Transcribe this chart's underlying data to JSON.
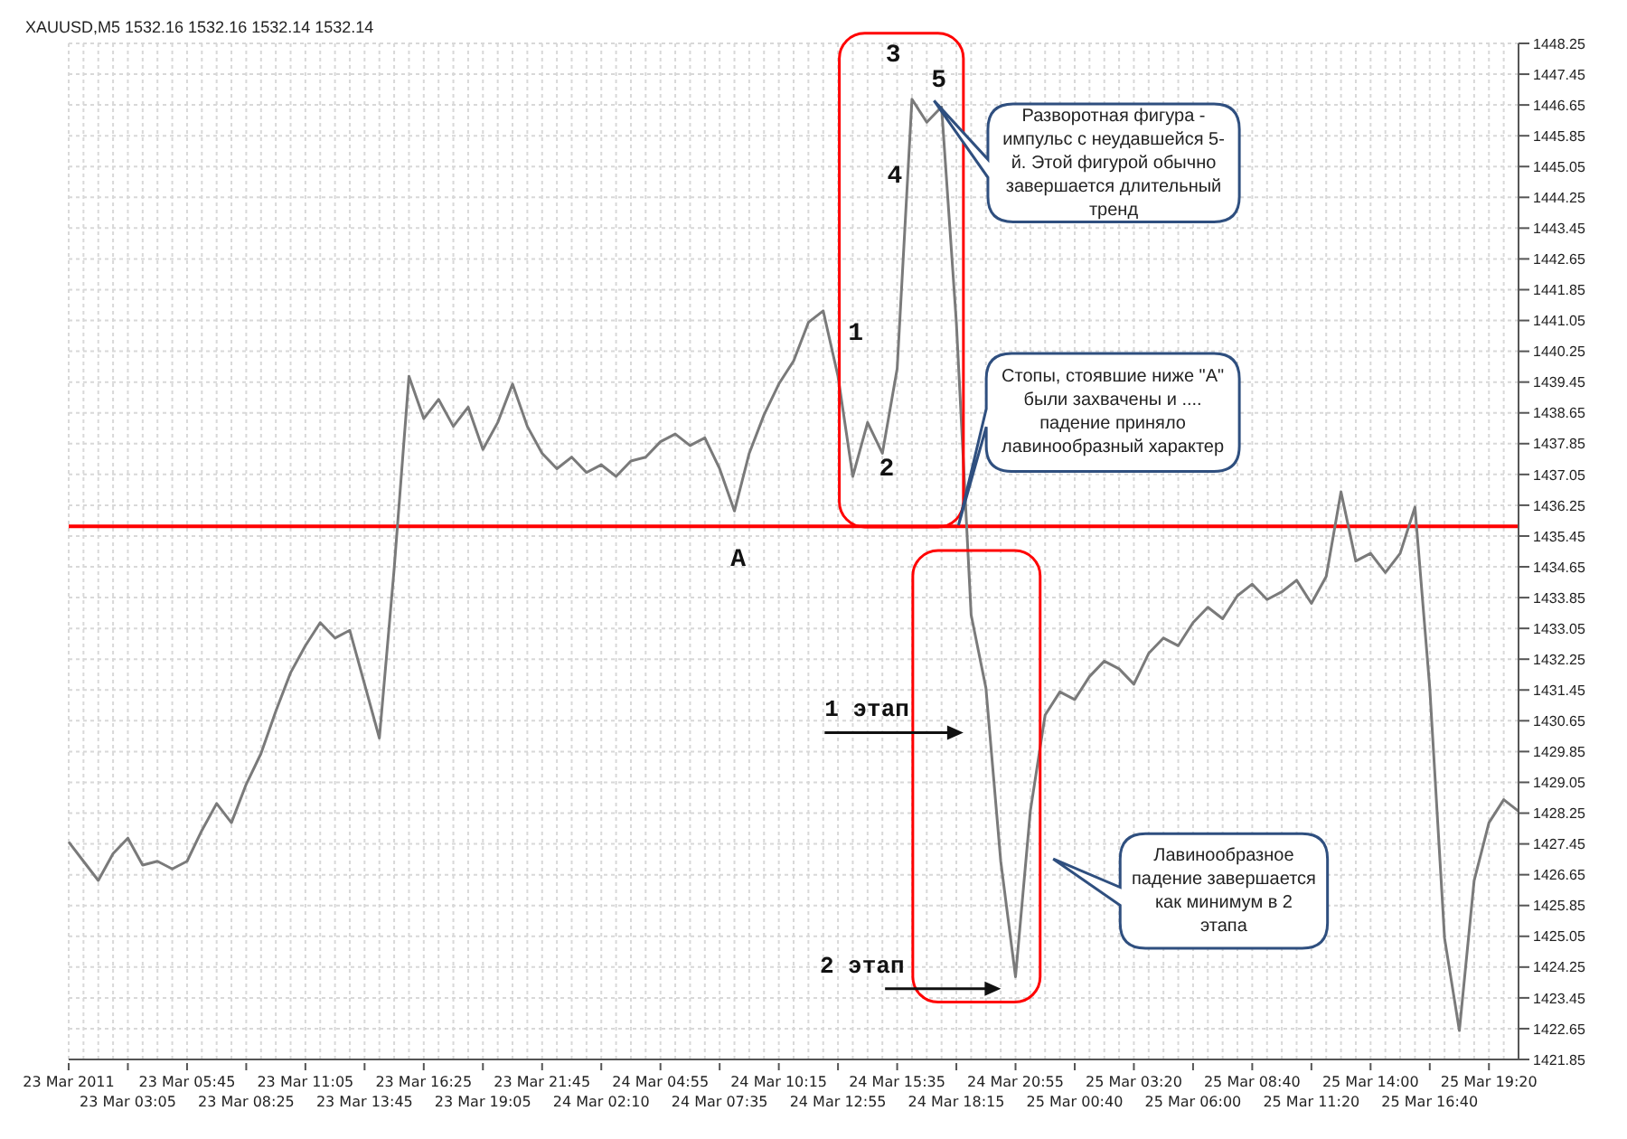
{
  "chart_data": {
    "type": "line",
    "title": "XAUUSD,M5  1532.16 1532.16 1532.14 1532.14",
    "categories": [
      "23 Mar 2011",
      null,
      null,
      null,
      "23 Mar 03:05",
      null,
      null,
      null,
      "23 Mar 05:45",
      null,
      null,
      null,
      "23 Mar 08:25",
      null,
      null,
      null,
      "23 Mar 11:05",
      null,
      null,
      null,
      "23 Mar 13:45",
      null,
      null,
      null,
      "23 Mar 16:25",
      null,
      null,
      null,
      "23 Mar 19:05",
      null,
      null,
      null,
      "23 Mar 21:45",
      null,
      null,
      null,
      "24 Mar 02:10",
      null,
      null,
      null,
      "24 Mar 04:55",
      null,
      null,
      null,
      "24 Mar 07:35",
      null,
      null,
      null,
      "24 Mar 10:15",
      null,
      null,
      null,
      "24 Mar 12:55",
      null,
      null,
      null,
      "24 Mar 15:35",
      null,
      null,
      null,
      "24 Mar 18:15",
      null,
      null,
      null,
      "24 Mar 20:55",
      null,
      null,
      null,
      "25 Mar 00:40",
      null,
      null,
      null,
      "25 Mar 03:20",
      null,
      null,
      null,
      "25 Mar 06:00",
      null,
      null,
      null,
      "25 Mar 08:40",
      null,
      null,
      null,
      "25 Mar 11:20",
      null,
      null,
      null,
      "25 Mar 14:00",
      null,
      null,
      null,
      "25 Mar 16:40",
      null,
      null,
      null,
      "25 Mar 19:20",
      null,
      null
    ],
    "series": [
      {
        "color": "#7a7a7a",
        "values": [
          1427.5,
          1427.0,
          1426.5,
          1427.2,
          1427.6,
          1426.9,
          1427.0,
          1426.8,
          1427.0,
          1427.8,
          1428.5,
          1428.0,
          1429.0,
          1429.8,
          1430.9,
          1431.9,
          1432.6,
          1433.2,
          1432.8,
          1433.0,
          1431.6,
          1430.2,
          1434.6,
          1439.6,
          1438.5,
          1439.0,
          1438.3,
          1438.8,
          1437.7,
          1438.4,
          1439.4,
          1438.3,
          1437.6,
          1437.2,
          1437.5,
          1437.1,
          1437.3,
          1437.0,
          1437.4,
          1437.5,
          1437.9,
          1438.1,
          1437.8,
          1438.0,
          1437.2,
          1436.1,
          1437.6,
          1438.6,
          1439.4,
          1440.0,
          1441.0,
          1441.3,
          1439.6,
          1437.0,
          1438.4,
          1437.6,
          1439.8,
          1446.8,
          1446.2,
          1446.6,
          1441.0,
          1433.4,
          1431.5,
          1427.0,
          1424.0,
          1428.3,
          1430.8,
          1431.4,
          1431.2,
          1431.8,
          1432.2,
          1432.0,
          1431.6,
          1432.4,
          1432.8,
          1432.6,
          1433.2,
          1433.6,
          1433.3,
          1433.9,
          1434.2,
          1433.8,
          1434.0,
          1434.3,
          1433.7,
          1434.4,
          1436.6,
          1434.8,
          1435.0,
          1434.5,
          1435.0,
          1436.2,
          1431.5,
          1425.0,
          1422.6,
          1426.5,
          1428.0,
          1428.6,
          1428.3
        ]
      }
    ],
    "ylim": [
      1421.85,
      1448.25
    ],
    "yticks": [
      1421.85,
      1422.65,
      1423.45,
      1424.25,
      1425.05,
      1425.85,
      1426.65,
      1427.45,
      1428.25,
      1429.05,
      1429.85,
      1430.65,
      1431.45,
      1432.25,
      1433.05,
      1433.85,
      1434.65,
      1435.45,
      1436.25,
      1437.05,
      1437.85,
      1438.65,
      1439.45,
      1440.25,
      1441.05,
      1441.85,
      1442.65,
      1443.45,
      1444.25,
      1445.05,
      1445.85,
      1446.65,
      1447.45,
      1448.25
    ],
    "grid": true,
    "marker": "none",
    "line_style": "solid",
    "ref_lines": [
      {
        "axis": "y",
        "value": 1435.7,
        "label": "A",
        "color": "#ff0000"
      }
    ],
    "annotations": [
      "1",
      "2",
      "3",
      "4",
      "5",
      "1 этап",
      "2 этап",
      "Разворотная фигура - импульс с неудавшейся 5-й. Этой фигурой обычно завершается длительный тренд",
      "Стопы, стоявшие ниже \"A\" были захвачены и .... падение приняло лавинообразный характер",
      "Лавинообразное падение завершается как минимум в 2 этапа"
    ]
  }
}
